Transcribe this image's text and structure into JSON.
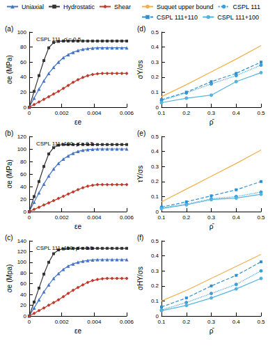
{
  "chart_data": [
    {
      "type": "line",
      "label": "(a)",
      "annotation": "CSPL 111, ρ̄ = 0.5",
      "xlabel": "εe",
      "ylabel": "σe (MPa)",
      "legend": "top",
      "grid": false,
      "x": [
        0,
        0.0003,
        0.0006,
        0.0009,
        0.0012,
        0.0015,
        0.0018,
        0.0021,
        0.0024,
        0.0027,
        0.003,
        0.0033,
        0.0036,
        0.0039,
        0.0042,
        0.0045,
        0.0048,
        0.0051,
        0.0054,
        0.0057,
        0.006
      ],
      "xlim": [
        0,
        0.006
      ],
      "xticks": [
        0,
        0.002,
        0.004,
        0.006
      ],
      "ylim": [
        0,
        100
      ],
      "yticks": [
        0,
        20,
        40,
        60,
        80,
        100
      ],
      "series": [
        {
          "name": "Uniaxial",
          "color": "#4472c4",
          "marker": "triangle",
          "line_style": "solid",
          "values": [
            0,
            12,
            24,
            35,
            45,
            53,
            60,
            66,
            70,
            73,
            75.5,
            77,
            78,
            78.5,
            79,
            79,
            79,
            79,
            79,
            79,
            79
          ]
        },
        {
          "name": "Hydrostatic",
          "color": "#333333",
          "marker": "square",
          "line_style": "solid",
          "values": [
            0,
            21,
            42,
            62,
            79,
            86,
            87.5,
            88,
            88,
            88,
            88,
            88,
            88,
            88,
            88,
            88,
            88,
            88,
            88,
            88,
            88
          ]
        },
        {
          "name": "Shear",
          "color": "#c0392b",
          "marker": "diamond",
          "line_style": "solid",
          "values": [
            0,
            3.5,
            7,
            10.5,
            14,
            17.5,
            21,
            25,
            29,
            33,
            36.5,
            39.5,
            42,
            43.5,
            44.5,
            45,
            45,
            45,
            45,
            45,
            45
          ]
        }
      ]
    },
    {
      "type": "line",
      "label": "(b)",
      "annotation": "CSPL 111+100, ρ̄ = 0.5",
      "xlabel": "εe",
      "ylabel": "σe (MPa)",
      "grid": false,
      "x": [
        0,
        0.0003,
        0.0006,
        0.0009,
        0.0012,
        0.0015,
        0.0018,
        0.0021,
        0.0024,
        0.0027,
        0.003,
        0.0033,
        0.0036,
        0.0039,
        0.0042,
        0.0045,
        0.0048,
        0.0051,
        0.0054,
        0.0057,
        0.006
      ],
      "xlim": [
        0,
        0.006
      ],
      "xticks": [
        0,
        0.002,
        0.004,
        0.006
      ],
      "ylim": [
        0,
        120
      ],
      "yticks": [
        0,
        20,
        40,
        60,
        80,
        100,
        120
      ],
      "series": [
        {
          "name": "Uniaxial",
          "color": "#4472c4",
          "marker": "triangle",
          "line_style": "solid",
          "values": [
            0,
            15,
            30,
            44,
            57,
            68,
            77,
            84,
            89,
            93,
            96,
            98,
            99,
            99.5,
            100,
            100,
            100,
            100,
            100,
            100,
            100
          ]
        },
        {
          "name": "Hydrostatic",
          "color": "#333333",
          "marker": "square",
          "line_style": "solid",
          "values": [
            0,
            24,
            48,
            72,
            92,
            102,
            106,
            107,
            107,
            107,
            107,
            107,
            107,
            107,
            107,
            107,
            107,
            107,
            107,
            107,
            107
          ]
        },
        {
          "name": "Shear",
          "color": "#c0392b",
          "marker": "diamond",
          "line_style": "solid",
          "values": [
            0,
            3.5,
            7,
            10.5,
            14,
            17.5,
            21,
            24.5,
            28,
            31.5,
            35,
            38,
            40.5,
            42,
            43,
            43,
            43,
            43,
            43,
            43,
            43
          ]
        }
      ]
    },
    {
      "type": "line",
      "label": "(c)",
      "annotation": "CSPL 111+110, ρ̄ = 0.5",
      "xlabel": "εe",
      "ylabel": "σe (Mpa)",
      "grid": false,
      "x": [
        0,
        0.0003,
        0.0006,
        0.0009,
        0.0012,
        0.0015,
        0.0018,
        0.0021,
        0.0024,
        0.0027,
        0.003,
        0.0033,
        0.0036,
        0.0039,
        0.0042,
        0.0045,
        0.0048,
        0.0051,
        0.0054,
        0.0057,
        0.006
      ],
      "xlim": [
        0,
        0.006
      ],
      "xticks": [
        0,
        0.002,
        0.004,
        0.006
      ],
      "ylim": [
        0,
        140
      ],
      "yticks": [
        0,
        20,
        40,
        60,
        80,
        100,
        120,
        140
      ],
      "series": [
        {
          "name": "Uniaxial",
          "color": "#4472c4",
          "marker": "triangle",
          "line_style": "solid",
          "values": [
            0,
            15,
            30,
            45,
            58,
            70,
            79,
            87,
            93,
            97,
            100,
            102,
            103.5,
            104.5,
            105,
            105,
            105,
            105,
            105,
            105,
            105
          ]
        },
        {
          "name": "Hydrostatic",
          "color": "#333333",
          "marker": "square",
          "line_style": "solid",
          "values": [
            0,
            26,
            52,
            78,
            100,
            116,
            123,
            125,
            126,
            126,
            126,
            126,
            126,
            126,
            126,
            126,
            126,
            126,
            126,
            126,
            126
          ]
        },
        {
          "name": "Shear",
          "color": "#c0392b",
          "marker": "diamond",
          "line_style": "solid",
          "values": [
            0,
            5,
            10,
            15,
            20,
            25,
            30,
            36,
            42,
            48,
            53,
            58,
            62.5,
            66,
            68,
            69.5,
            70,
            70,
            70,
            70,
            70
          ]
        }
      ]
    },
    {
      "type": "line",
      "label": "(d)",
      "xlabel": "ρ̄",
      "ylabel": "σY/σs",
      "legend": "top",
      "grid": false,
      "x": [
        0.1,
        0.2,
        0.3,
        0.4,
        0.5
      ],
      "xlim": [
        0.1,
        0.5
      ],
      "xticks": [
        0.1,
        0.2,
        0.3,
        0.4,
        0.5
      ],
      "ylim": [
        0,
        0.5
      ],
      "yticks": [
        0,
        0.1,
        0.2,
        0.3,
        0.4,
        0.5
      ],
      "series": [
        {
          "name": "Suquet upper bound",
          "color": "#f0b04a",
          "marker": "none",
          "line_style": "solid",
          "values": [
            0.07,
            0.15,
            0.235,
            0.32,
            0.41
          ]
        },
        {
          "name": "CSPL 111",
          "color": "#3f9fd6",
          "marker": "circle",
          "line_style": "dotted",
          "values": [
            0.045,
            0.095,
            0.155,
            0.21,
            0.28
          ]
        },
        {
          "name": "CSPL 111+110",
          "color": "#2e8fcf",
          "marker": "square",
          "line_style": "dashed",
          "values": [
            0.05,
            0.1,
            0.17,
            0.225,
            0.3
          ]
        },
        {
          "name": "CSPL 111+100",
          "color": "#55b3e0",
          "marker": "circle",
          "line_style": "solid",
          "values": [
            0.03,
            0.06,
            0.08,
            0.17,
            0.23
          ]
        }
      ]
    },
    {
      "type": "line",
      "label": "(e)",
      "xlabel": "ρ̄",
      "ylabel": "τY/σs",
      "grid": false,
      "x": [
        0.1,
        0.2,
        0.3,
        0.4,
        0.5
      ],
      "xlim": [
        0.1,
        0.5
      ],
      "xticks": [
        0.1,
        0.2,
        0.3,
        0.4,
        0.5
      ],
      "ylim": [
        0,
        0.5
      ],
      "yticks": [
        0,
        0.1,
        0.2,
        0.3,
        0.4,
        0.5
      ],
      "series": [
        {
          "name": "Suquet upper bound",
          "color": "#f0b04a",
          "marker": "none",
          "line_style": "solid",
          "values": [
            0.065,
            0.15,
            0.235,
            0.32,
            0.41
          ]
        },
        {
          "name": "CSPL 111",
          "color": "#3f9fd6",
          "marker": "circle",
          "line_style": "dotted",
          "values": [
            0.025,
            0.05,
            0.085,
            0.1,
            0.13
          ]
        },
        {
          "name": "CSPL 111+110",
          "color": "#2e8fcf",
          "marker": "square",
          "line_style": "dashed",
          "values": [
            0.03,
            0.065,
            0.105,
            0.145,
            0.2
          ]
        },
        {
          "name": "CSPL 111+100",
          "color": "#55b3e0",
          "marker": "circle",
          "line_style": "solid",
          "values": [
            0.02,
            0.045,
            0.08,
            0.09,
            0.115
          ]
        }
      ]
    },
    {
      "type": "line",
      "label": "(f)",
      "xlabel": "ρ̄",
      "ylabel": "σHY/σs",
      "grid": false,
      "x": [
        0.1,
        0.2,
        0.3,
        0.4,
        0.5
      ],
      "xlim": [
        0.1,
        0.5
      ],
      "xticks": [
        0.1,
        0.2,
        0.3,
        0.4,
        0.5
      ],
      "ylim": [
        0,
        0.5
      ],
      "yticks": [
        0,
        0.1,
        0.2,
        0.3,
        0.4,
        0.5
      ],
      "series": [
        {
          "name": "Suquet upper bound",
          "color": "#f0b04a",
          "marker": "none",
          "line_style": "solid",
          "values": [
            0.1,
            0.17,
            0.25,
            0.33,
            0.41
          ]
        },
        {
          "name": "CSPL 111",
          "color": "#3f9fd6",
          "marker": "circle",
          "line_style": "dotted",
          "values": [
            0.04,
            0.09,
            0.15,
            0.21,
            0.3
          ]
        },
        {
          "name": "CSPL 111+110",
          "color": "#2e8fcf",
          "marker": "square",
          "line_style": "dashed",
          "values": [
            0.06,
            0.12,
            0.2,
            0.27,
            0.36
          ]
        },
        {
          "name": "CSPL 111+100",
          "color": "#55b3e0",
          "marker": "circle",
          "line_style": "solid",
          "values": [
            0.035,
            0.07,
            0.12,
            0.18,
            0.25
          ]
        }
      ]
    }
  ]
}
